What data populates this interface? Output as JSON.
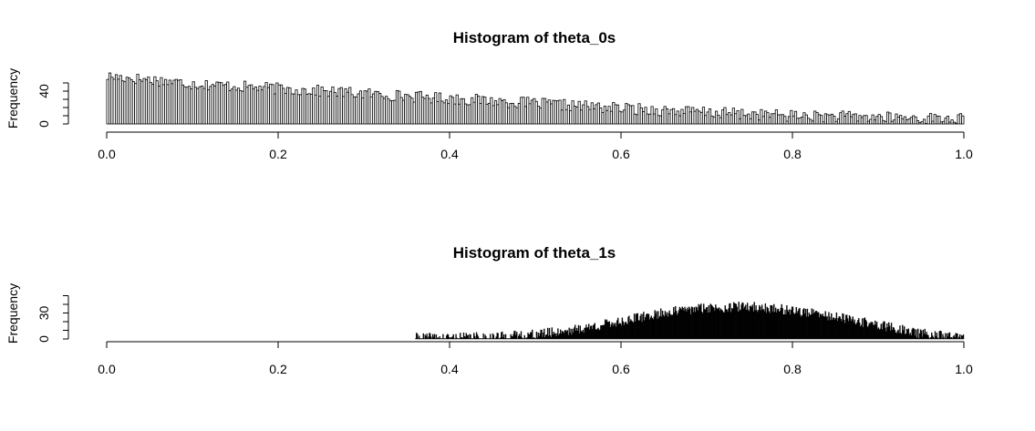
{
  "chart_data": [
    {
      "type": "bar",
      "subtype": "histogram",
      "title": "Histogram of theta_0s",
      "xlabel": "",
      "ylabel": "Frequency",
      "xlim": [
        0,
        1
      ],
      "ylim": [
        0,
        60
      ],
      "x_ticks": [
        0.0,
        0.2,
        0.4,
        0.6,
        0.8,
        1.0
      ],
      "x_tick_labels": [
        "0.0",
        "0.2",
        "0.4",
        "0.6",
        "0.8",
        "1.0"
      ],
      "y_ticks": [
        0,
        40
      ],
      "y_tick_labels": [
        "0",
        "40"
      ],
      "y_minor_ticks": [
        0,
        10,
        20,
        30,
        40,
        50
      ],
      "bin_width": 0.0025,
      "bin_start": 0.0,
      "profile": {
        "x": [
          0.0,
          0.05,
          0.1,
          0.2,
          0.3,
          0.4,
          0.5,
          0.6,
          0.7,
          0.8,
          0.9,
          1.0
        ],
        "y": [
          58,
          54,
          49,
          43,
          37,
          31,
          25,
          19,
          14,
          10,
          8,
          6
        ]
      },
      "noise": 7,
      "seed": 17,
      "fill": "#ffffff",
      "stroke": "#000000",
      "grid": false,
      "legend": "none"
    },
    {
      "type": "bar",
      "subtype": "histogram",
      "title": "Histogram of theta_1s",
      "xlabel": "",
      "ylabel": "Frequency",
      "xlim": [
        0,
        1
      ],
      "ylim": [
        0,
        60
      ],
      "x_ticks": [
        0.0,
        0.2,
        0.4,
        0.6,
        0.8,
        1.0
      ],
      "x_tick_labels": [
        "0.0",
        "0.2",
        "0.4",
        "0.6",
        "0.8",
        "1.0"
      ],
      "y_ticks": [
        0,
        30
      ],
      "y_tick_labels": [
        "0",
        "30"
      ],
      "y_minor_ticks": [
        0,
        10,
        20,
        30,
        40,
        50
      ],
      "bin_width": 0.001,
      "bin_start": 0.36,
      "profile": {
        "x": [
          0.36,
          0.4,
          0.45,
          0.5,
          0.55,
          0.6,
          0.65,
          0.7,
          0.75,
          0.8,
          0.85,
          0.9,
          0.95,
          0.995
        ],
        "y": [
          1,
          1,
          2,
          5,
          11,
          20,
          30,
          36,
          37,
          33,
          25,
          16,
          6,
          1
        ]
      },
      "noise": 6,
      "seed": 41,
      "fill": "#000000",
      "stroke": "#000000",
      "grid": false,
      "legend": "none"
    }
  ]
}
